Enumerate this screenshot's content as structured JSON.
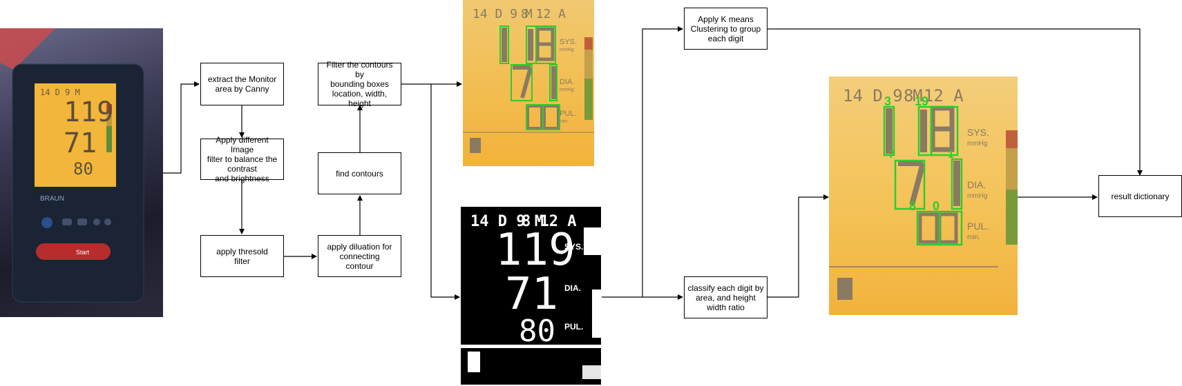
{
  "steps": {
    "extract": "extract the Monitor\narea by Canny",
    "filter": "Apply different Image\nfilter to balance the\ncontrast\nand brightness",
    "threshold": "apply thresold\nfilter",
    "dilation": "apply diluation for\nconnecting\ncontour",
    "find": "find contours",
    "filter_contours": "Filter the contours by\nbounding boxes\nlocation, width, height",
    "kmeans": "Apply K means\nClustering to group\neach digit",
    "classify": "classify each digit by\narea, and height\nwidth ratio",
    "result": "result dictionary"
  },
  "monitor": {
    "date": "14 D  9 M",
    "time": "8 12 A",
    "sys": "119",
    "dia": "71",
    "pul": "80",
    "sys_label": "SYS.",
    "dia_label": "DIA.",
    "pul_label": "PUL.",
    "unit": "mmHg",
    "pul_unit": "min.",
    "brand": "BRAUN",
    "start": "Start"
  },
  "labels": {
    "top1": "19",
    "l7": "7",
    "l1": "1",
    "l8": "8",
    "l0": "0",
    "l3": "3"
  }
}
